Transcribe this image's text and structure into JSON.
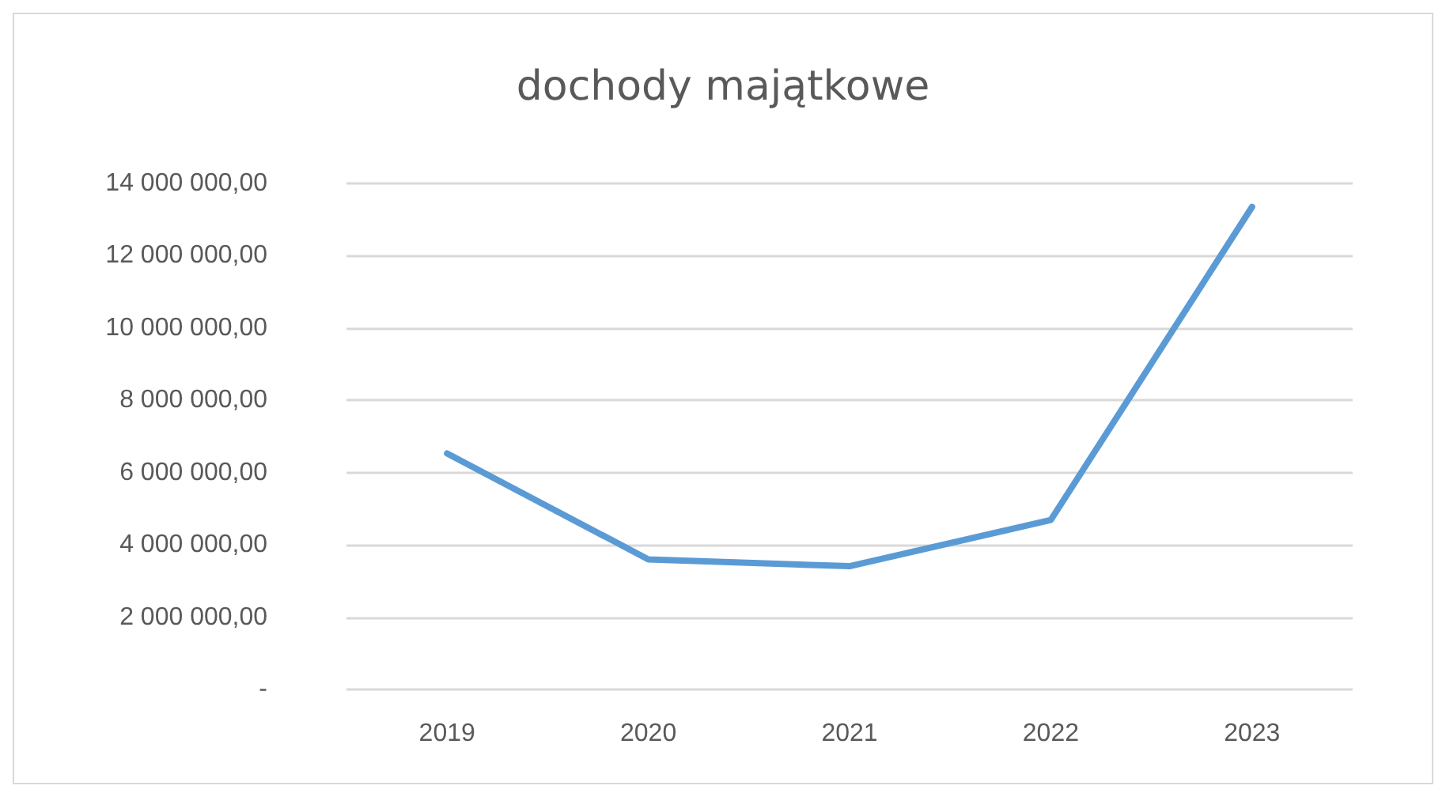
{
  "chart_data": {
    "type": "line",
    "title": "dochody majątkowe",
    "categories": [
      "2019",
      "2020",
      "2021",
      "2022",
      "2023"
    ],
    "series": [
      {
        "color": "#5b9bd5",
        "values": [
          6530000,
          3600000,
          3410000,
          4690000,
          13350000
        ]
      }
    ],
    "ylim": [
      0,
      14000000
    ],
    "yticks": [
      {
        "value": 0,
        "label": "-"
      },
      {
        "value": 2000000,
        "label": "2 000 000,00"
      },
      {
        "value": 4000000,
        "label": "4 000 000,00"
      },
      {
        "value": 6000000,
        "label": "6 000 000,00"
      },
      {
        "value": 8000000,
        "label": "8 000 000,00"
      },
      {
        "value": 10000000,
        "label": "10 000 000,00"
      },
      {
        "value": 12000000,
        "label": "12 000 000,00"
      },
      {
        "value": 14000000,
        "label": "14 000 000,00"
      }
    ],
    "grid": "y",
    "marker": "none",
    "line_style": "solid"
  }
}
